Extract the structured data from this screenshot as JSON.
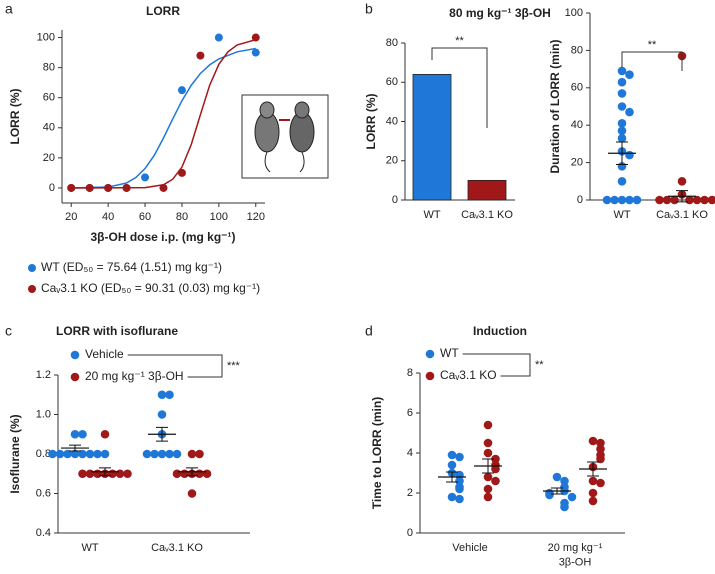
{
  "chart_data": [
    {
      "type": "line",
      "panel": "a",
      "title": "LORR",
      "ylabel": "LORR (%)",
      "xlabel": "3β-OH dose i.p. (mg kg⁻¹)",
      "xlim": [
        15,
        125
      ],
      "xticks": [
        20,
        40,
        60,
        80,
        100,
        120
      ],
      "ylim": [
        -10,
        105
      ],
      "yticks": [
        0,
        20,
        40,
        60,
        80,
        100
      ],
      "series": [
        {
          "name": "WT (ED₅₀ = 75.64 (1.51) mg kg⁻¹)",
          "color": "#1f78d8",
          "x": [
            20,
            30,
            40,
            50,
            60,
            80,
            100,
            120
          ],
          "values": [
            0,
            0,
            0,
            0,
            7,
            65,
            100,
            90
          ],
          "fit": {
            "x": [
              20,
              40,
              50,
              55,
              60,
              65,
              70,
              75,
              80,
              85,
              90,
              95,
              100,
              110,
              120
            ],
            "values": [
              0,
              0.6,
              3.3,
              6.9,
              12.9,
              21.7,
              33.2,
              45.9,
              58,
              68.2,
              76.1,
              81.8,
              85.8,
              90.5,
              92.7
            ]
          }
        },
        {
          "name": "Caᵥ3.1 KO (ED₅₀ = 90.31 (0.03) mg kg⁻¹)",
          "color": "#a01818",
          "x": [
            20,
            30,
            40,
            50,
            70,
            80,
            90,
            120
          ],
          "values": [
            0,
            0,
            0,
            0,
            0,
            10,
            88,
            100
          ],
          "fit": {
            "x": [
              20,
              60,
              70,
              75,
              80,
              85,
              90,
              95,
              100,
              105,
              110,
              120
            ],
            "values": [
              0,
              0.2,
              2.1,
              5.8,
              13.9,
              28.7,
              48.7,
              68.2,
              82.2,
              90.6,
              95.1,
              98.6
            ]
          }
        }
      ]
    },
    {
      "type": "bar",
      "panel": "b",
      "title": "80 mg kg⁻¹ 3β-OH",
      "ylabel": "LORR (%)",
      "categories": [
        "WT",
        "Caᵥ3.1 KO"
      ],
      "values": [
        64,
        10
      ],
      "colors": [
        "#1f78d8",
        "#a01818"
      ],
      "ylim": [
        0,
        80
      ],
      "yticks": [
        0,
        20,
        40,
        60,
        80
      ],
      "significance": "**"
    },
    {
      "type": "dot",
      "ylabel": "Duration of LORR (min)",
      "categories": [
        "WT",
        "Caᵥ3.1 KO"
      ],
      "colors": [
        "#1f78d8",
        "#a01818"
      ],
      "values": [
        [
          69,
          67,
          63,
          57,
          50,
          47,
          41,
          37,
          33,
          26,
          24,
          18,
          10,
          0,
          0,
          0,
          0,
          0
        ],
        [
          77,
          10,
          3,
          0,
          0,
          0,
          0,
          0,
          0,
          0
        ]
      ],
      "mean": [
        25,
        2
      ],
      "sem": [
        6,
        3
      ],
      "ylim": [
        0,
        100
      ],
      "yticks": [
        0,
        20,
        40,
        60,
        80,
        100
      ],
      "significance": "**"
    },
    {
      "type": "dot",
      "panel": "c",
      "title": "LORR with isoflurane",
      "ylabel": "Isoflurane (%)",
      "categories": [
        "WT",
        "Caᵥ3.1 KO"
      ],
      "ylim": [
        0.4,
        1.2
      ],
      "yticks": [
        0.4,
        0.6,
        0.8,
        {
          "value": 1,
          "label": "1.0"
        },
        1.2
      ],
      "significance": "***",
      "series": [
        {
          "name": "Vehicle",
          "color": "#1f78d8",
          "values": [
            [
              0.9,
              0.9,
              0.8,
              0.8,
              0.8,
              0.8,
              0.8,
              0.8,
              0.8,
              0.8
            ],
            [
              1.1,
              1.1,
              1,
              0.9,
              0.8,
              0.8,
              0.8,
              0.8,
              0.8
            ]
          ],
          "mean": [
            0.83,
            0.9
          ],
          "sem": [
            0.015,
            0.035
          ]
        },
        {
          "name": "20 mg kg⁻¹ 3β-OH",
          "color": "#a01818",
          "values": [
            [
              0.9,
              0.7,
              0.7,
              0.7,
              0.7,
              0.7,
              0.7,
              0.7
            ],
            [
              0.8,
              0.8,
              0.7,
              0.7,
              0.7,
              0.7,
              0.7,
              0.6
            ]
          ],
          "mean": [
            0.71,
            0.71
          ],
          "sem": [
            0.02,
            0.02
          ]
        }
      ]
    },
    {
      "type": "dot",
      "panel": "d",
      "title": "Induction",
      "ylabel": "Time to LORR (min)",
      "categories": [
        "Vehicle",
        "20 mg kg⁻¹\n3β-OH"
      ],
      "ylim": [
        0,
        8
      ],
      "yticks": [
        0,
        2,
        4,
        6,
        8
      ],
      "significance": "**",
      "series": [
        {
          "name": "WT",
          "color": "#1f78d8",
          "values": [
            [
              3.9,
              3.8,
              3.4,
              3,
              2.9,
              2.6,
              2.3,
              2.2,
              1.8,
              1.7
            ],
            [
              2.8,
              2.6,
              2.3,
              2.1,
              2,
              1.9,
              1.8,
              1.5,
              1.3
            ]
          ],
          "mean": [
            2.8,
            2.1
          ],
          "sem": [
            0.25,
            0.15
          ]
        },
        {
          "name": "Caᵥ3.1 KO",
          "color": "#a01818",
          "values": [
            [
              5.4,
              4.5,
              4,
              3.7,
              3.4,
              3.2,
              2.8,
              2.6,
              2.2,
              1.8
            ],
            [
              4.6,
              4.5,
              4.2,
              3.9,
              3.7,
              3.3,
              2.6,
              2.5,
              2,
              1.6
            ]
          ],
          "mean": [
            3.35,
            3.2
          ],
          "sem": [
            0.35,
            0.35
          ]
        }
      ]
    }
  ]
}
